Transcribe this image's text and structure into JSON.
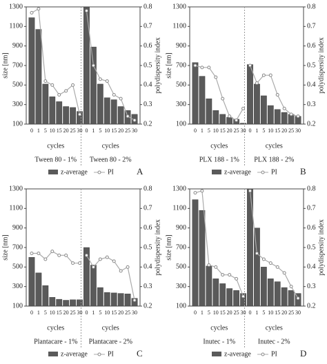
{
  "chart_data": [
    {
      "type": "bar",
      "panel": "A",
      "ylabel": "size [nm]",
      "y2label": "polydispersity index",
      "x_label": "cycles",
      "ylim": [
        100,
        1300
      ],
      "yticks": [
        100,
        300,
        500,
        700,
        900,
        1100,
        1300
      ],
      "y2lim": [
        0.2,
        0.8
      ],
      "y2ticks": [
        0.2,
        0.3,
        0.4,
        0.5,
        0.6,
        0.7,
        0.8
      ],
      "series": [
        {
          "name": "z-average",
          "color": "#5a5a5a"
        },
        {
          "name": "PI",
          "color": "#aaaaaa",
          "axis": "y2"
        }
      ],
      "groups": [
        {
          "label": "Tween  80 - 1%",
          "categories": [
            "0",
            "1",
            "5",
            "10",
            "15",
            "20",
            "25",
            "30"
          ],
          "z_average": [
            1190,
            1070,
            510,
            380,
            330,
            280,
            270,
            230
          ],
          "pi": [
            0.77,
            0.79,
            0.42,
            0.4,
            0.35,
            0.37,
            0.4,
            0.25
          ]
        },
        {
          "label": "Tween  80 - 2%",
          "categories": [
            "0",
            "1",
            "5",
            "10",
            "15",
            "20",
            "25",
            "30"
          ],
          "z_average": [
            1300,
            890,
            510,
            370,
            350,
            280,
            240,
            200
          ],
          "pi": [
            0.78,
            0.5,
            0.43,
            0.42,
            0.35,
            0.33,
            0.24,
            0.22
          ]
        }
      ]
    },
    {
      "type": "bar",
      "panel": "B",
      "ylabel": "size [nm]",
      "y2label": "polydispersity index",
      "x_label": "cycles",
      "ylim": [
        100,
        1300
      ],
      "yticks": [
        100,
        300,
        500,
        700,
        900,
        1100,
        1300
      ],
      "y2lim": [
        0.2,
        0.8
      ],
      "y2ticks": [
        0.2,
        0.3,
        0.4,
        0.5,
        0.6,
        0.7,
        0.8
      ],
      "series": [
        {
          "name": "z-average",
          "color": "#5a5a5a"
        },
        {
          "name": "PI",
          "color": "#aaaaaa",
          "axis": "y2"
        }
      ],
      "groups": [
        {
          "label": "PLX 188 - 1%",
          "categories": [
            "0",
            "1",
            "5",
            "10",
            "15",
            "20",
            "25",
            "30"
          ],
          "z_average": [
            730,
            590,
            360,
            240,
            200,
            170,
            150,
            110
          ],
          "pi": [
            0.5,
            0.49,
            0.49,
            0.44,
            0.33,
            0.24,
            0.22,
            0.28
          ]
        },
        {
          "label": "PLX 188 - 2%",
          "categories": [
            "0",
            "1",
            "5",
            "10",
            "15",
            "20",
            "25",
            "30"
          ],
          "z_average": [
            710,
            510,
            390,
            290,
            250,
            220,
            200,
            180
          ],
          "pi": [
            0.5,
            0.41,
            0.45,
            0.45,
            0.35,
            0.28,
            0.25,
            0.24
          ]
        }
      ]
    },
    {
      "type": "bar",
      "panel": "C",
      "ylabel": "size [nm]",
      "y2label": "polydispersity index",
      "x_label": "cycles",
      "ylim": [
        100,
        1300
      ],
      "yticks": [
        100,
        300,
        500,
        700,
        900,
        1100,
        1300
      ],
      "y2lim": [
        0.2,
        0.8
      ],
      "y2ticks": [
        0.2,
        0.3,
        0.4,
        0.5,
        0.6,
        0.7,
        0.8
      ],
      "series": [
        {
          "name": "z-average",
          "color": "#5a5a5a"
        },
        {
          "name": "PI",
          "color": "#aaaaaa",
          "axis": "y2"
        }
      ],
      "groups": [
        {
          "label": "Plantacare - 1%",
          "categories": [
            "0",
            "1",
            "5",
            "10",
            "15",
            "20",
            "25",
            "30"
          ],
          "z_average": [
            600,
            440,
            310,
            190,
            170,
            160,
            165,
            165
          ],
          "pi": [
            0.47,
            0.47,
            0.44,
            0.48,
            0.46,
            0.46,
            0.42,
            0.42
          ]
        },
        {
          "label": "Plantacare - 2%",
          "categories": [
            "0",
            "1",
            "5",
            "10",
            "15",
            "20",
            "25",
            "30"
          ],
          "z_average": [
            700,
            520,
            290,
            240,
            235,
            230,
            225,
            180
          ],
          "pi": [
            0.46,
            0.4,
            0.44,
            0.45,
            0.43,
            0.38,
            0.4,
            0.23
          ]
        }
      ]
    },
    {
      "type": "bar",
      "panel": "D",
      "ylabel": "size [nm]",
      "y2label": "polydispersity index",
      "x_label": "cycles",
      "ylim": [
        100,
        1300
      ],
      "yticks": [
        100,
        300,
        500,
        700,
        900,
        1100,
        1300
      ],
      "y2lim": [
        0.2,
        0.8
      ],
      "y2ticks": [
        0.2,
        0.3,
        0.4,
        0.5,
        0.6,
        0.7,
        0.8
      ],
      "series": [
        {
          "name": "z-average",
          "color": "#5a5a5a"
        },
        {
          "name": "PI",
          "color": "#aaaaaa",
          "axis": "y2"
        }
      ],
      "groups": [
        {
          "label": "Inutec - 1%",
          "categories": [
            "0",
            "1",
            "5",
            "10",
            "15",
            "20",
            "25",
            "30"
          ],
          "z_average": [
            1190,
            1080,
            510,
            380,
            330,
            280,
            260,
            230
          ],
          "pi": [
            0.78,
            0.79,
            0.41,
            0.4,
            0.36,
            0.36,
            0.34,
            0.25
          ]
        },
        {
          "label": "Inutec - 2%",
          "categories": [
            "0",
            "1",
            "5",
            "10",
            "15",
            "20",
            "25",
            "30"
          ],
          "z_average": [
            1300,
            900,
            500,
            380,
            350,
            290,
            260,
            230
          ],
          "pi": [
            0.79,
            0.47,
            0.44,
            0.42,
            0.4,
            0.37,
            0.3,
            0.24
          ]
        }
      ]
    }
  ]
}
